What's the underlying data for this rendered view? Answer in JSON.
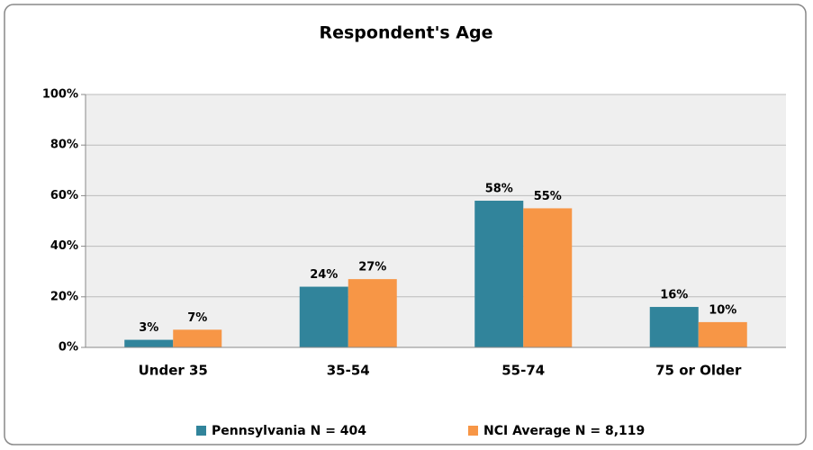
{
  "chart_data": {
    "type": "bar",
    "title": "Respondent's Age",
    "categories": [
      "Under 35",
      "35-54",
      "55-74",
      "75 or Older"
    ],
    "series": [
      {
        "name": "Pennsylvania N = 404",
        "color": "#31849b",
        "values": [
          3,
          24,
          58,
          16
        ],
        "value_labels": [
          "3%",
          "24%",
          "58%",
          "16%"
        ]
      },
      {
        "name": "NCI Average N = 8,119",
        "color": "#f79646",
        "values": [
          7,
          27,
          55,
          10
        ],
        "value_labels": [
          "7%",
          "27%",
          "55%",
          "10%"
        ]
      }
    ],
    "ylim": [
      0,
      100
    ],
    "yticks": [
      {
        "value": 0,
        "label": "0%"
      },
      {
        "value": 20,
        "label": "20%"
      },
      {
        "value": 40,
        "label": "40%"
      },
      {
        "value": 60,
        "label": "60%"
      },
      {
        "value": 80,
        "label": "80%"
      },
      {
        "value": 100,
        "label": "100%"
      }
    ],
    "grid": true,
    "legend": "bottom"
  }
}
